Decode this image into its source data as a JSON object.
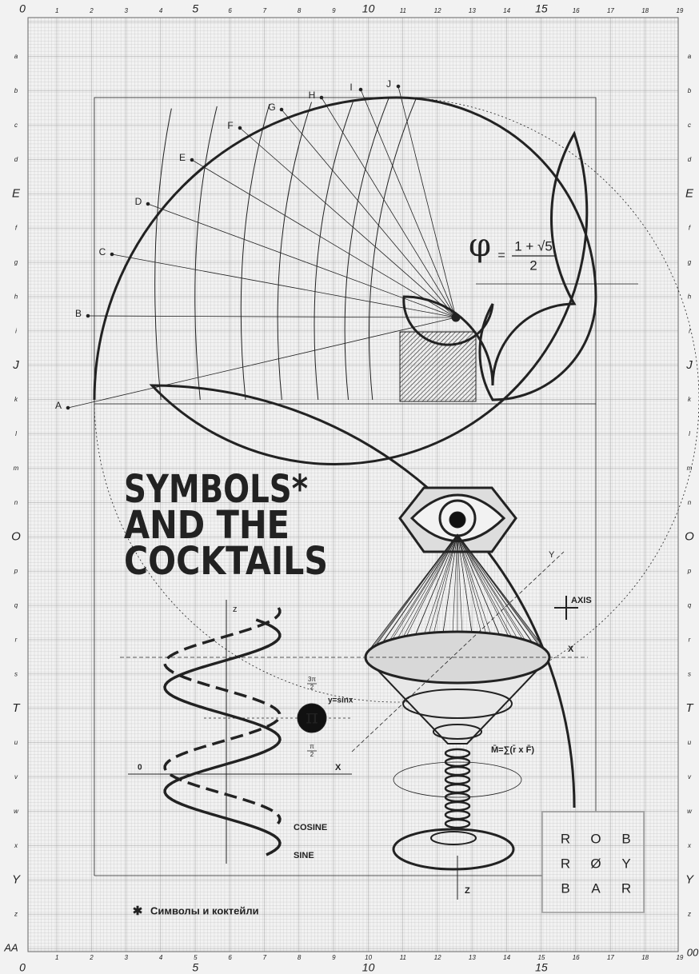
{
  "ruler": {
    "top": [
      "0",
      "1",
      "2",
      "3",
      "4",
      "5",
      "6",
      "7",
      "8",
      "9",
      "10",
      "11",
      "12",
      "13",
      "14",
      "15",
      "16",
      "17",
      "18",
      "19"
    ],
    "bottom_small": [
      "1",
      "2",
      "3",
      "4",
      "5",
      "6",
      "7",
      "8",
      "9",
      "10",
      "11",
      "12",
      "13",
      "14",
      "15",
      "16",
      "17",
      "18",
      "19"
    ],
    "bottom_large": [
      "0",
      "5",
      "10",
      "15"
    ],
    "rows": [
      "a",
      "b",
      "c",
      "d",
      "E",
      "f",
      "g",
      "h",
      "i",
      "J",
      "k",
      "l",
      "m",
      "n",
      "O",
      "p",
      "q",
      "r",
      "s",
      "T",
      "u",
      "v",
      "w",
      "x",
      "Y",
      "z"
    ],
    "corner_bottom_left": "AA",
    "corner_bottom_right": "00"
  },
  "spiral": {
    "points": [
      "A",
      "B",
      "C",
      "D",
      "E",
      "F",
      "G",
      "H",
      "I",
      "J"
    ],
    "formula": {
      "lhs": "φ",
      "eq": "=",
      "numerator": "1 + √5",
      "denominator": "2"
    }
  },
  "title": [
    "SYMBOLS*",
    "AND THE",
    "COCKTAILS"
  ],
  "glass": {
    "axis_y": "Y",
    "axis_legend": "AXIS",
    "axis_x": "X",
    "axis_z": "Z",
    "moment": "M̄=∑(r̄ x F̄)"
  },
  "wave": {
    "axis_z": "z",
    "origin": "0",
    "axis_x": "X",
    "equation": "y=sinx",
    "symbol": "π",
    "upper": {
      "numerator": "3π",
      "denominator": "2"
    },
    "lower": {
      "numerator": "π",
      "denominator": "2"
    },
    "cosine": "COSINE",
    "sine": "SINE"
  },
  "logo": {
    "rows": [
      [
        "R",
        "O",
        "B"
      ],
      [
        "R",
        "Ø",
        "Y"
      ],
      [
        "B",
        "A",
        "R"
      ]
    ]
  },
  "footnote": {
    "mark": "✱",
    "text": "Символы и коктейли"
  }
}
